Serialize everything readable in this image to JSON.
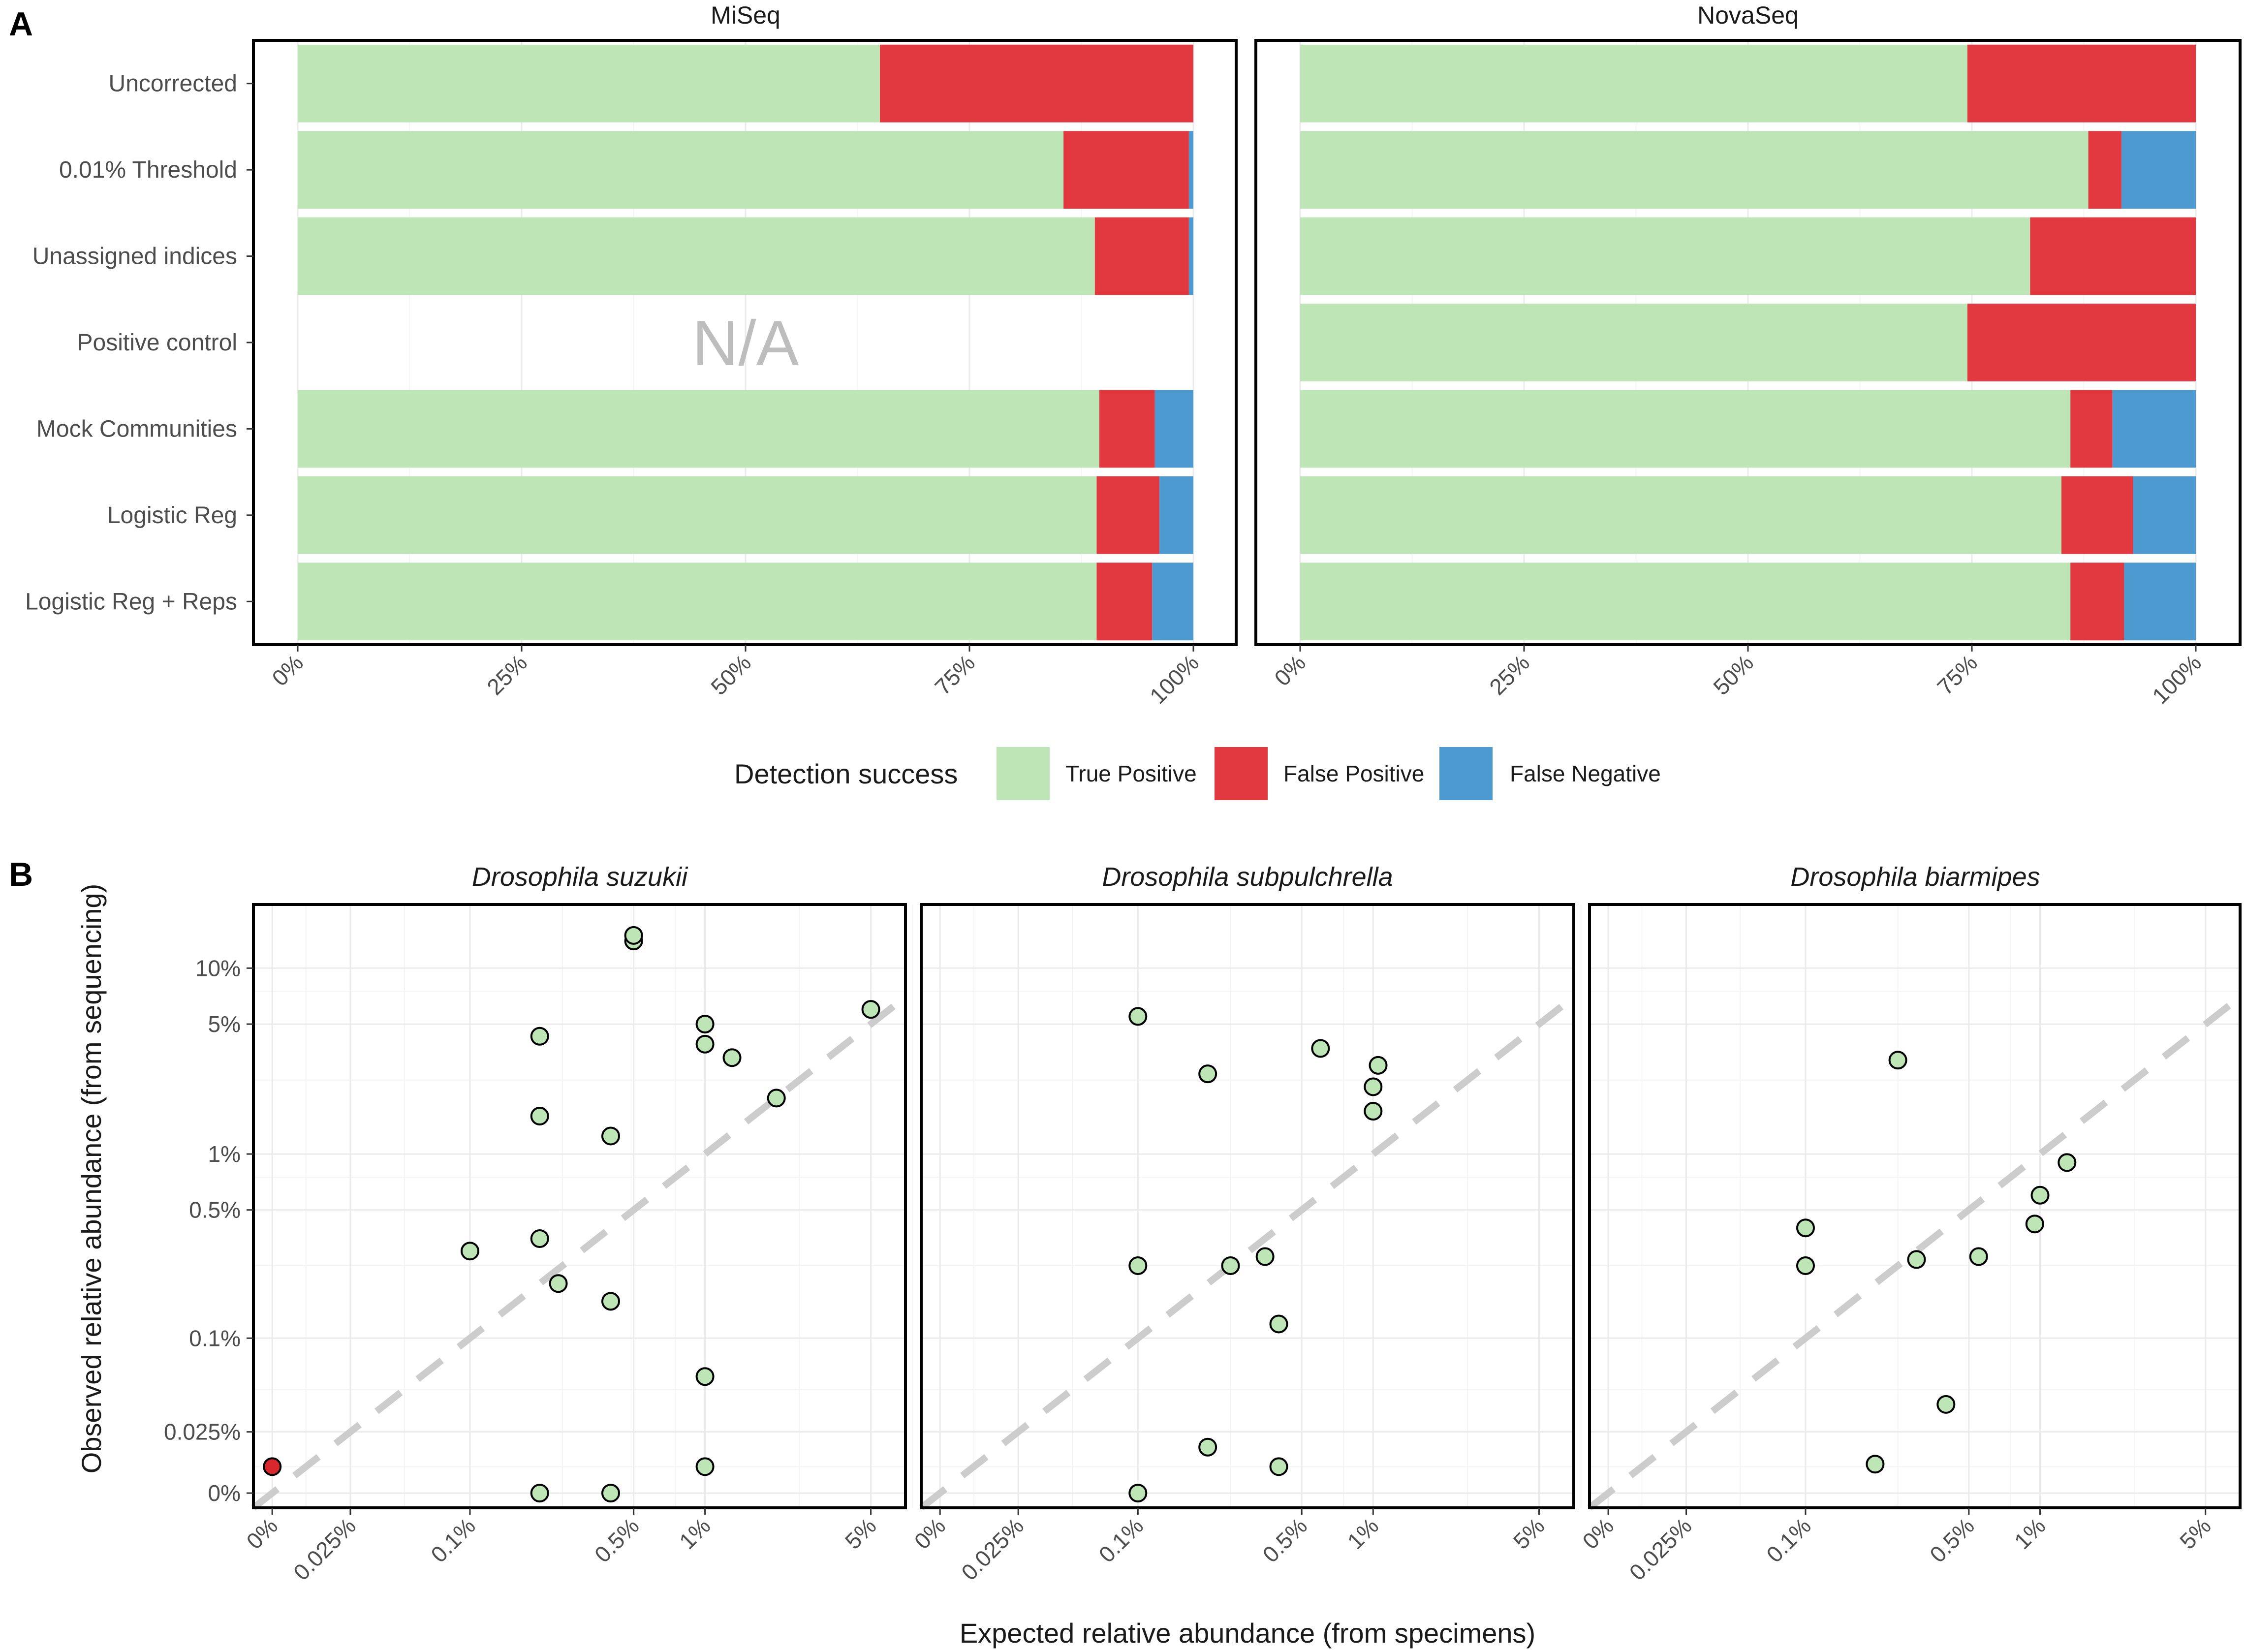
{
  "colors": {
    "true_positive": "#bde5b6",
    "false_positive": "#e2383f",
    "false_negative": "#4d9ad1",
    "dot_fill": "#bde5b6",
    "dot_false": "#d9272e",
    "reference_line": "#cccccc"
  },
  "chart_data": [
    {
      "panel": "A",
      "type": "bar",
      "orientation": "horizontal-stacked",
      "facets": [
        "MiSeq",
        "NovaSeq"
      ],
      "categories": [
        "Uncorrected",
        "0.01% Threshold",
        "Unassigned indices",
        "Positive control",
        "Mock Communities",
        "Logistic Reg",
        "Logistic Reg + Reps"
      ],
      "x_ticks": [
        "0%",
        "25%",
        "50%",
        "75%",
        "100%"
      ],
      "xlim": [
        0,
        100
      ],
      "na_label": "N/A",
      "na_facet": "MiSeq",
      "na_category": "Positive control",
      "series_names": [
        "True Positive",
        "False Positive",
        "False Negative"
      ],
      "series": {
        "MiSeq": [
          {
            "category": "Uncorrected",
            "true_positive": 65,
            "false_positive": 35,
            "false_negative": 0
          },
          {
            "category": "0.01% Threshold",
            "true_positive": 85.5,
            "false_positive": 14,
            "false_negative": 0.5
          },
          {
            "category": "Unassigned indices",
            "true_positive": 89,
            "false_positive": 10.5,
            "false_negative": 0.5
          },
          {
            "category": "Positive control",
            "true_positive": null,
            "false_positive": null,
            "false_negative": null
          },
          {
            "category": "Mock Communities",
            "true_positive": 89.5,
            "false_positive": 6.2,
            "false_negative": 4.3
          },
          {
            "category": "Logistic Reg",
            "true_positive": 89.2,
            "false_positive": 7,
            "false_negative": 3.8
          },
          {
            "category": "Logistic Reg + Reps",
            "true_positive": 89.2,
            "false_positive": 6.2,
            "false_negative": 4.6
          }
        ],
        "NovaSeq": [
          {
            "category": "Uncorrected",
            "true_positive": 74.5,
            "false_positive": 25.5,
            "false_negative": 0
          },
          {
            "category": "0.01% Threshold",
            "true_positive": 88,
            "false_positive": 3.7,
            "false_negative": 8.3
          },
          {
            "category": "Unassigned indices",
            "true_positive": 81.5,
            "false_positive": 18.5,
            "false_negative": 0
          },
          {
            "category": "Positive control",
            "true_positive": 74.5,
            "false_positive": 25.5,
            "false_negative": 0
          },
          {
            "category": "Mock Communities",
            "true_positive": 86,
            "false_positive": 4.7,
            "false_negative": 9.3
          },
          {
            "category": "Logistic Reg",
            "true_positive": 85,
            "false_positive": 8,
            "false_negative": 7
          },
          {
            "category": "Logistic Reg + Reps",
            "true_positive": 86,
            "false_positive": 6,
            "false_negative": 8
          }
        ]
      },
      "legend": {
        "title": "Detection success",
        "entries": [
          "True Positive",
          "False Positive",
          "False Negative"
        ],
        "placement": "bottom"
      }
    },
    {
      "panel": "B",
      "type": "scatter",
      "scale": "pseudo-log (0% at origin)",
      "xlabel": "Expected relative abundance (from specimens)",
      "ylabel": "Observed relative abundance (from sequencing)",
      "x_ticks": [
        "0%",
        "0.025%",
        "0.1%",
        "0.5%",
        "1%",
        "5%"
      ],
      "y_ticks": [
        "0%",
        "0.025%",
        "0.1%",
        "0.5%",
        "1%",
        "5%",
        "10%"
      ],
      "reference_line": "y = x (dashed)",
      "facets": [
        {
          "title": "Drosophila suzukii",
          "points": [
            {
              "x": 0,
              "y": 0.01,
              "status": "false_positive"
            },
            {
              "x": 0.1,
              "y": 0.3
            },
            {
              "x": 0.2,
              "y": 0.35
            },
            {
              "x": 0.2,
              "y": 1.6
            },
            {
              "x": 0.2,
              "y": 4.3
            },
            {
              "x": 0.2,
              "y": 0
            },
            {
              "x": 0.24,
              "y": 0.2
            },
            {
              "x": 0.4,
              "y": 0.16
            },
            {
              "x": 0.4,
              "y": 1.25
            },
            {
              "x": 0.4,
              "y": 0
            },
            {
              "x": 0.5,
              "y": 14
            },
            {
              "x": 0.5,
              "y": 15
            },
            {
              "x": 1,
              "y": 5
            },
            {
              "x": 1,
              "y": 3.9
            },
            {
              "x": 1,
              "y": 0.06
            },
            {
              "x": 1,
              "y": 0.01
            },
            {
              "x": 1.3,
              "y": 3.3
            },
            {
              "x": 2,
              "y": 2
            },
            {
              "x": 5,
              "y": 6
            }
          ]
        },
        {
          "title": "Drosophila subpulchrella",
          "points": [
            {
              "x": 0.1,
              "y": 5.5
            },
            {
              "x": 0.1,
              "y": 0.25
            },
            {
              "x": 0.1,
              "y": 0
            },
            {
              "x": 0.2,
              "y": 2.7
            },
            {
              "x": 0.2,
              "y": 0.018
            },
            {
              "x": 0.25,
              "y": 0.25
            },
            {
              "x": 0.35,
              "y": 0.28
            },
            {
              "x": 0.4,
              "y": 0.12
            },
            {
              "x": 0.4,
              "y": 0.01
            },
            {
              "x": 0.6,
              "y": 3.7
            },
            {
              "x": 1,
              "y": 2.3
            },
            {
              "x": 1,
              "y": 1.7
            },
            {
              "x": 1.05,
              "y": 3
            }
          ]
        },
        {
          "title": "Drosophila biarmipes",
          "points": [
            {
              "x": 0.1,
              "y": 0.4
            },
            {
              "x": 0.1,
              "y": 0.25
            },
            {
              "x": 0.2,
              "y": 0.011
            },
            {
              "x": 0.25,
              "y": 3.2
            },
            {
              "x": 0.3,
              "y": 0.27
            },
            {
              "x": 0.4,
              "y": 0.04
            },
            {
              "x": 0.55,
              "y": 0.28
            },
            {
              "x": 0.95,
              "y": 0.42
            },
            {
              "x": 1,
              "y": 0.6
            },
            {
              "x": 1.3,
              "y": 0.9
            }
          ]
        }
      ]
    }
  ],
  "panel_labels": [
    "A",
    "B"
  ]
}
